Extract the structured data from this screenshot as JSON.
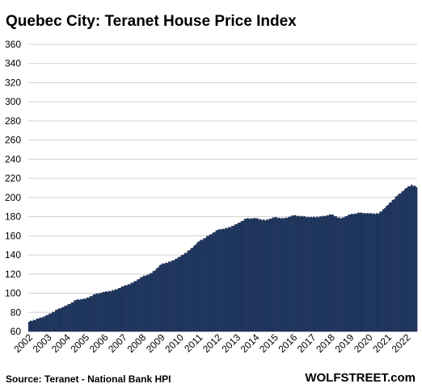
{
  "chart_data": {
    "type": "bar",
    "title": "Quebec City: Teranet House Price Index",
    "xlabel": "",
    "ylabel": "",
    "ylim": [
      60,
      360
    ],
    "yticks": [
      60,
      80,
      100,
      120,
      140,
      160,
      180,
      200,
      220,
      240,
      260,
      280,
      300,
      320,
      340,
      360
    ],
    "grid": true,
    "legend": "none",
    "bar_color": "#223a63",
    "x_tick_labels": [
      "2002",
      "2003",
      "2004",
      "2005",
      "2006",
      "2007",
      "2008",
      "2009",
      "2010",
      "2011",
      "2012",
      "2013",
      "2014",
      "2015",
      "2016",
      "2017",
      "2018",
      "2019",
      "2020",
      "2021",
      "2022"
    ],
    "x_start_year": 2002,
    "frequency": "monthly",
    "anchors": [
      [
        2002.0,
        70
      ],
      [
        2003.0,
        77
      ],
      [
        2003.5,
        83
      ],
      [
        2004.0,
        87
      ],
      [
        2004.5,
        93
      ],
      [
        2005.0,
        94
      ],
      [
        2005.5,
        99
      ],
      [
        2006.0,
        101
      ],
      [
        2006.5,
        103
      ],
      [
        2007.0,
        107
      ],
      [
        2007.5,
        111
      ],
      [
        2008.0,
        117
      ],
      [
        2008.5,
        121
      ],
      [
        2009.0,
        130
      ],
      [
        2009.5,
        133
      ],
      [
        2010.0,
        138
      ],
      [
        2010.5,
        145
      ],
      [
        2011.0,
        154
      ],
      [
        2011.5,
        160
      ],
      [
        2012.0,
        166
      ],
      [
        2012.5,
        168
      ],
      [
        2013.0,
        172
      ],
      [
        2013.5,
        178
      ],
      [
        2014.0,
        178
      ],
      [
        2014.5,
        176
      ],
      [
        2015.0,
        179
      ],
      [
        2015.5,
        178
      ],
      [
        2016.0,
        181
      ],
      [
        2016.5,
        180
      ],
      [
        2017.0,
        179
      ],
      [
        2017.5,
        180
      ],
      [
        2018.0,
        182
      ],
      [
        2018.5,
        178
      ],
      [
        2019.0,
        182
      ],
      [
        2019.5,
        184
      ],
      [
        2020.0,
        183
      ],
      [
        2020.5,
        183
      ],
      [
        2021.0,
        192
      ],
      [
        2021.5,
        202
      ],
      [
        2022.0,
        210
      ],
      [
        2022.25,
        213
      ],
      [
        2022.5,
        211
      ]
    ],
    "source": "Source: Teranet - National Bank HPI",
    "brand": "WOLFSTREET.com"
  }
}
